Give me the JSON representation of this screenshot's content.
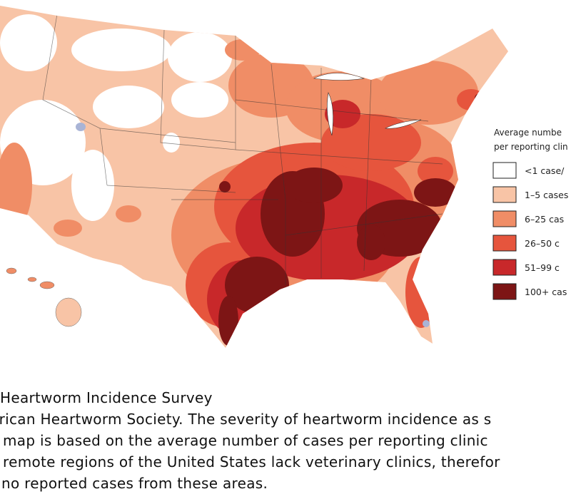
{
  "legend": {
    "title": [
      "Average numbe",
      "per reporting clin"
    ],
    "items": [
      {
        "label": "<1 case/",
        "color": "#ffffff"
      },
      {
        "label": "1–5 cases",
        "color": "#f8c4a6"
      },
      {
        "label": "6–25 cas",
        "color": "#f08d66"
      },
      {
        "label": "26–50 c",
        "color": "#e6553d"
      },
      {
        "label": "51–99 c",
        "color": "#c8282a"
      },
      {
        "label": "100+ cas",
        "color": "#7d1515"
      }
    ]
  },
  "caption": {
    "title": "Heartworm Incidence Survey",
    "lines": [
      "erican Heartworm Society. The severity of heartworm incidence as s",
      "map is based on the average number of cases per reporting clinic",
      "remote regions of the United States lack veterinary clinics, therefor",
      "no reported cases from these areas."
    ]
  }
}
